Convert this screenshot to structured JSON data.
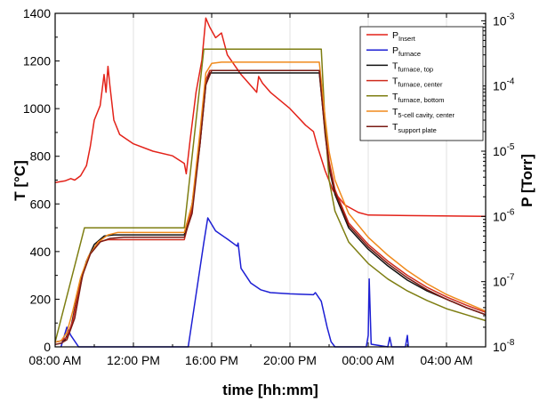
{
  "chart_data": {
    "type": "line",
    "xlabel": "time [hh:mm]",
    "ylabel": "T [°C]",
    "y2label": "P [Torr]",
    "x_unit": "hours since 08:00 AM",
    "xlim": [
      0,
      22
    ],
    "ylim": [
      0,
      1400
    ],
    "y2lim": [
      1e-08,
      0.0013
    ],
    "y2_scale": "log",
    "x_ticks": [
      {
        "x": 0,
        "label": "08:00 AM"
      },
      {
        "x": 4,
        "label": "12:00 PM"
      },
      {
        "x": 8,
        "label": "16:00 PM"
      },
      {
        "x": 12,
        "label": "20:00 PM"
      },
      {
        "x": 16,
        "label": "00:00 AM"
      },
      {
        "x": 20,
        "label": "04:00 AM"
      }
    ],
    "y_ticks": [
      0,
      200,
      400,
      600,
      800,
      1000,
      1200,
      1400
    ],
    "y2_ticks": [
      {
        "v": 1e-08,
        "base": "10",
        "exp": "-8"
      },
      {
        "v": 1e-07,
        "base": "10",
        "exp": "-7"
      },
      {
        "v": 1e-06,
        "base": "10",
        "exp": "-6"
      },
      {
        "v": 1e-05,
        "base": "10",
        "exp": "-5"
      },
      {
        "v": 0.0001,
        "base": "10",
        "exp": "-4"
      },
      {
        "v": 0.001,
        "base": "10",
        "exp": "-3"
      }
    ],
    "grid": "vertical-only",
    "legend_position": "top-right",
    "series": [
      {
        "id": "p_insert",
        "name_main": "P",
        "name_sub": "Insert",
        "color": "#e32219",
        "axis": "right",
        "points": [
          [
            0,
            3.3e-06
          ],
          [
            0.5,
            3.5e-06
          ],
          [
            0.8,
            3.8e-06
          ],
          [
            1.0,
            3.6e-06
          ],
          [
            1.3,
            4.2e-06
          ],
          [
            1.6,
            6e-06
          ],
          [
            1.8,
            1.2e-05
          ],
          [
            2.0,
            3e-05
          ],
          [
            2.3,
            5e-05
          ],
          [
            2.5,
            0.00015
          ],
          [
            2.6,
            8e-05
          ],
          [
            2.7,
            0.0002
          ],
          [
            2.8,
            0.0001
          ],
          [
            3.0,
            3e-05
          ],
          [
            3.3,
            1.8e-05
          ],
          [
            4,
            1.3e-05
          ],
          [
            5,
            1e-05
          ],
          [
            6,
            8.5e-06
          ],
          [
            6.6,
            6.5e-06
          ],
          [
            6.7,
            4.5e-06
          ],
          [
            6.9,
            1.5e-05
          ],
          [
            7.2,
            8e-05
          ],
          [
            7.5,
            0.00025
          ],
          [
            7.7,
            0.0011
          ],
          [
            7.9,
            0.0008
          ],
          [
            8.2,
            0.00055
          ],
          [
            8.5,
            0.00065
          ],
          [
            8.8,
            0.0003
          ],
          [
            9.5,
            0.00015
          ],
          [
            10.3,
            8e-05
          ],
          [
            10.4,
            0.00014
          ],
          [
            10.6,
            0.00011
          ],
          [
            11,
            8e-05
          ],
          [
            12,
            4.5e-05
          ],
          [
            12.8,
            2.5e-05
          ],
          [
            13.2,
            2e-05
          ],
          [
            13.4,
            1.2e-05
          ],
          [
            13.8,
            5e-06
          ],
          [
            14.2,
            2.5e-06
          ],
          [
            14.8,
            1.5e-06
          ],
          [
            15.5,
            1.15e-06
          ],
          [
            16,
            1.05e-06
          ],
          [
            18,
            1.03e-06
          ],
          [
            22,
            1e-06
          ]
        ]
      },
      {
        "id": "p_furnace",
        "name_main": "P",
        "name_sub": "furnace",
        "color": "#1d1fd4",
        "axis": "right",
        "points": [
          [
            0.3,
            1e-08
          ],
          [
            0.6,
            2e-08
          ],
          [
            0.8,
            1.5e-08
          ],
          [
            1.2,
            1e-08
          ],
          [
            6.8,
            1e-08
          ],
          [
            7.0,
            2.5e-08
          ],
          [
            7.3,
            1e-07
          ],
          [
            7.6,
            4e-07
          ],
          [
            7.8,
            9.5e-07
          ],
          [
            8.2,
            6e-07
          ],
          [
            8.8,
            4.5e-07
          ],
          [
            9.3,
            3.5e-07
          ],
          [
            9.35,
            3.9e-07
          ],
          [
            9.5,
            1.6e-07
          ],
          [
            10,
            9.5e-08
          ],
          [
            10.5,
            7.5e-08
          ],
          [
            11,
            6.8e-08
          ],
          [
            12,
            6.5e-08
          ],
          [
            13.2,
            6.3e-08
          ],
          [
            13.3,
            6.8e-08
          ],
          [
            13.6,
            5e-08
          ],
          [
            13.9,
            2e-08
          ],
          [
            14.1,
            1.2e-08
          ],
          [
            14.3,
            1e-08
          ],
          [
            15.9,
            1e-08
          ],
          [
            16,
            1.5e-08
          ],
          [
            16.05,
            1.1e-07
          ],
          [
            16.15,
            1.1e-08
          ],
          [
            17.0,
            1e-08
          ],
          [
            17.1,
            1.4e-08
          ],
          [
            17.2,
            1e-08
          ],
          [
            17.9,
            1e-08
          ],
          [
            18.0,
            1.5e-08
          ],
          [
            18.05,
            1e-08
          ]
        ]
      },
      {
        "id": "t_top",
        "name_main": "T",
        "name_sub": "furnace, top",
        "color": "#111111",
        "axis": "left",
        "points": [
          [
            0,
            20
          ],
          [
            0.3,
            25
          ],
          [
            0.5,
            30
          ],
          [
            0.8,
            80
          ],
          [
            1.0,
            160
          ],
          [
            1.3,
            280
          ],
          [
            1.6,
            360
          ],
          [
            2.0,
            430
          ],
          [
            2.5,
            465
          ],
          [
            3,
            470
          ],
          [
            6.6,
            470
          ],
          [
            7.0,
            600
          ],
          [
            7.4,
            850
          ],
          [
            7.7,
            1100
          ],
          [
            7.9,
            1150
          ],
          [
            13.5,
            1150
          ],
          [
            13.8,
            900
          ],
          [
            14.0,
            750
          ],
          [
            14.3,
            640
          ],
          [
            15,
            500
          ],
          [
            16,
            410
          ],
          [
            17,
            340
          ],
          [
            18,
            280
          ],
          [
            19,
            235
          ],
          [
            20,
            200
          ],
          [
            21,
            165
          ],
          [
            22,
            135
          ]
        ]
      },
      {
        "id": "t_center",
        "name_main": "T",
        "name_sub": "furnace, center",
        "color": "#cf2c1e",
        "axis": "left",
        "points": [
          [
            0,
            20
          ],
          [
            0.3,
            25
          ],
          [
            0.6,
            40
          ],
          [
            0.9,
            110
          ],
          [
            1.2,
            230
          ],
          [
            1.5,
            330
          ],
          [
            1.8,
            390
          ],
          [
            2.2,
            440
          ],
          [
            2.7,
            450
          ],
          [
            6.6,
            450
          ],
          [
            7.0,
            580
          ],
          [
            7.4,
            850
          ],
          [
            7.7,
            1120
          ],
          [
            7.9,
            1160
          ],
          [
            13.5,
            1160
          ],
          [
            13.8,
            920
          ],
          [
            14.0,
            780
          ],
          [
            14.3,
            660
          ],
          [
            15,
            520
          ],
          [
            16,
            430
          ],
          [
            17,
            360
          ],
          [
            18,
            300
          ],
          [
            19,
            250
          ],
          [
            20,
            210
          ],
          [
            21,
            175
          ],
          [
            22,
            145
          ]
        ]
      },
      {
        "id": "t_bottom",
        "name_main": "T",
        "name_sub": "furnace, bottom",
        "color": "#7e7e12",
        "axis": "left",
        "points": [
          [
            0,
            20
          ],
          [
            1.5,
            500
          ],
          [
            6.6,
            500
          ],
          [
            7.6,
            1250
          ],
          [
            13.6,
            1250
          ],
          [
            13.8,
            930
          ],
          [
            14.0,
            700
          ],
          [
            14.3,
            570
          ],
          [
            15,
            440
          ],
          [
            16,
            350
          ],
          [
            17,
            285
          ],
          [
            18,
            235
          ],
          [
            19,
            195
          ],
          [
            20,
            160
          ],
          [
            21,
            135
          ],
          [
            22,
            110
          ]
        ]
      },
      {
        "id": "t_cavity",
        "name_main": "T",
        "name_sub": "5-cell cavity, center",
        "color": "#f08a1c",
        "axis": "left",
        "points": [
          [
            0,
            20
          ],
          [
            0.3,
            25
          ],
          [
            0.6,
            60
          ],
          [
            0.9,
            150
          ],
          [
            1.3,
            290
          ],
          [
            1.7,
            380
          ],
          [
            2.2,
            440
          ],
          [
            2.7,
            470
          ],
          [
            3.2,
            480
          ],
          [
            6.6,
            480
          ],
          [
            7.0,
            600
          ],
          [
            7.4,
            900
          ],
          [
            7.7,
            1150
          ],
          [
            8.0,
            1190
          ],
          [
            8.5,
            1195
          ],
          [
            13.5,
            1195
          ],
          [
            13.8,
            960
          ],
          [
            14.0,
            820
          ],
          [
            14.3,
            700
          ],
          [
            15,
            560
          ],
          [
            16,
            460
          ],
          [
            17,
            385
          ],
          [
            18,
            320
          ],
          [
            19,
            265
          ],
          [
            20,
            220
          ],
          [
            21,
            185
          ],
          [
            22,
            150
          ]
        ]
      },
      {
        "id": "t_support",
        "name_main": "T",
        "name_sub": "support plate",
        "color": "#7a1b14",
        "axis": "left",
        "points": [
          [
            0,
            10
          ],
          [
            0.3,
            15
          ],
          [
            0.6,
            30
          ],
          [
            1.0,
            120
          ],
          [
            1.4,
            300
          ],
          [
            1.8,
            390
          ],
          [
            2.3,
            440
          ],
          [
            2.8,
            455
          ],
          [
            3.5,
            460
          ],
          [
            6.6,
            460
          ],
          [
            7.0,
            560
          ],
          [
            7.4,
            850
          ],
          [
            7.7,
            1100
          ],
          [
            8.0,
            1160
          ],
          [
            13.5,
            1160
          ],
          [
            13.8,
            890
          ],
          [
            14.0,
            760
          ],
          [
            14.3,
            650
          ],
          [
            15,
            510
          ],
          [
            16,
            420
          ],
          [
            17,
            350
          ],
          [
            18,
            290
          ],
          [
            19,
            240
          ],
          [
            20,
            200
          ],
          [
            21,
            165
          ],
          [
            22,
            135
          ]
        ]
      }
    ]
  }
}
